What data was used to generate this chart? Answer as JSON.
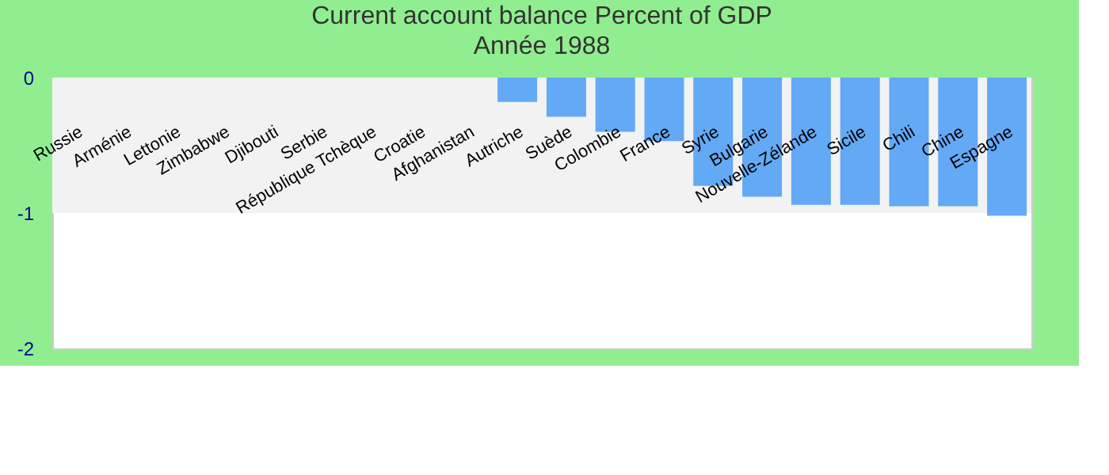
{
  "chart_data": {
    "type": "bar",
    "title": "Current account balance  Percent of GDP",
    "subtitle": "Année 1988",
    "categories": [
      "Russie",
      "Arménie",
      "Lettonie",
      "Zimbabwe",
      "Djibouti",
      "Serbie",
      "République Tchèque",
      "Croatie",
      "Afghanistan",
      "Autriche",
      "Suède",
      "Colombie",
      "France",
      "Syrie",
      "Bulgarie",
      "Nouvelle-Zélande",
      "Sicile",
      "Chili",
      "Chine",
      "Espagne"
    ],
    "values": [
      null,
      null,
      null,
      null,
      null,
      null,
      null,
      null,
      null,
      -0.18,
      -0.29,
      -0.4,
      -0.47,
      -0.8,
      -0.88,
      -0.94,
      -0.94,
      -0.95,
      -0.95,
      -1.02
    ],
    "color": "#63a9f5",
    "ylim": [
      -2,
      0
    ],
    "yticks": [
      0,
      -1,
      -2
    ],
    "grid": false,
    "bands": [
      {
        "axis": "y",
        "from": -1,
        "to": 0,
        "color": "#f2f2f2"
      }
    ]
  }
}
